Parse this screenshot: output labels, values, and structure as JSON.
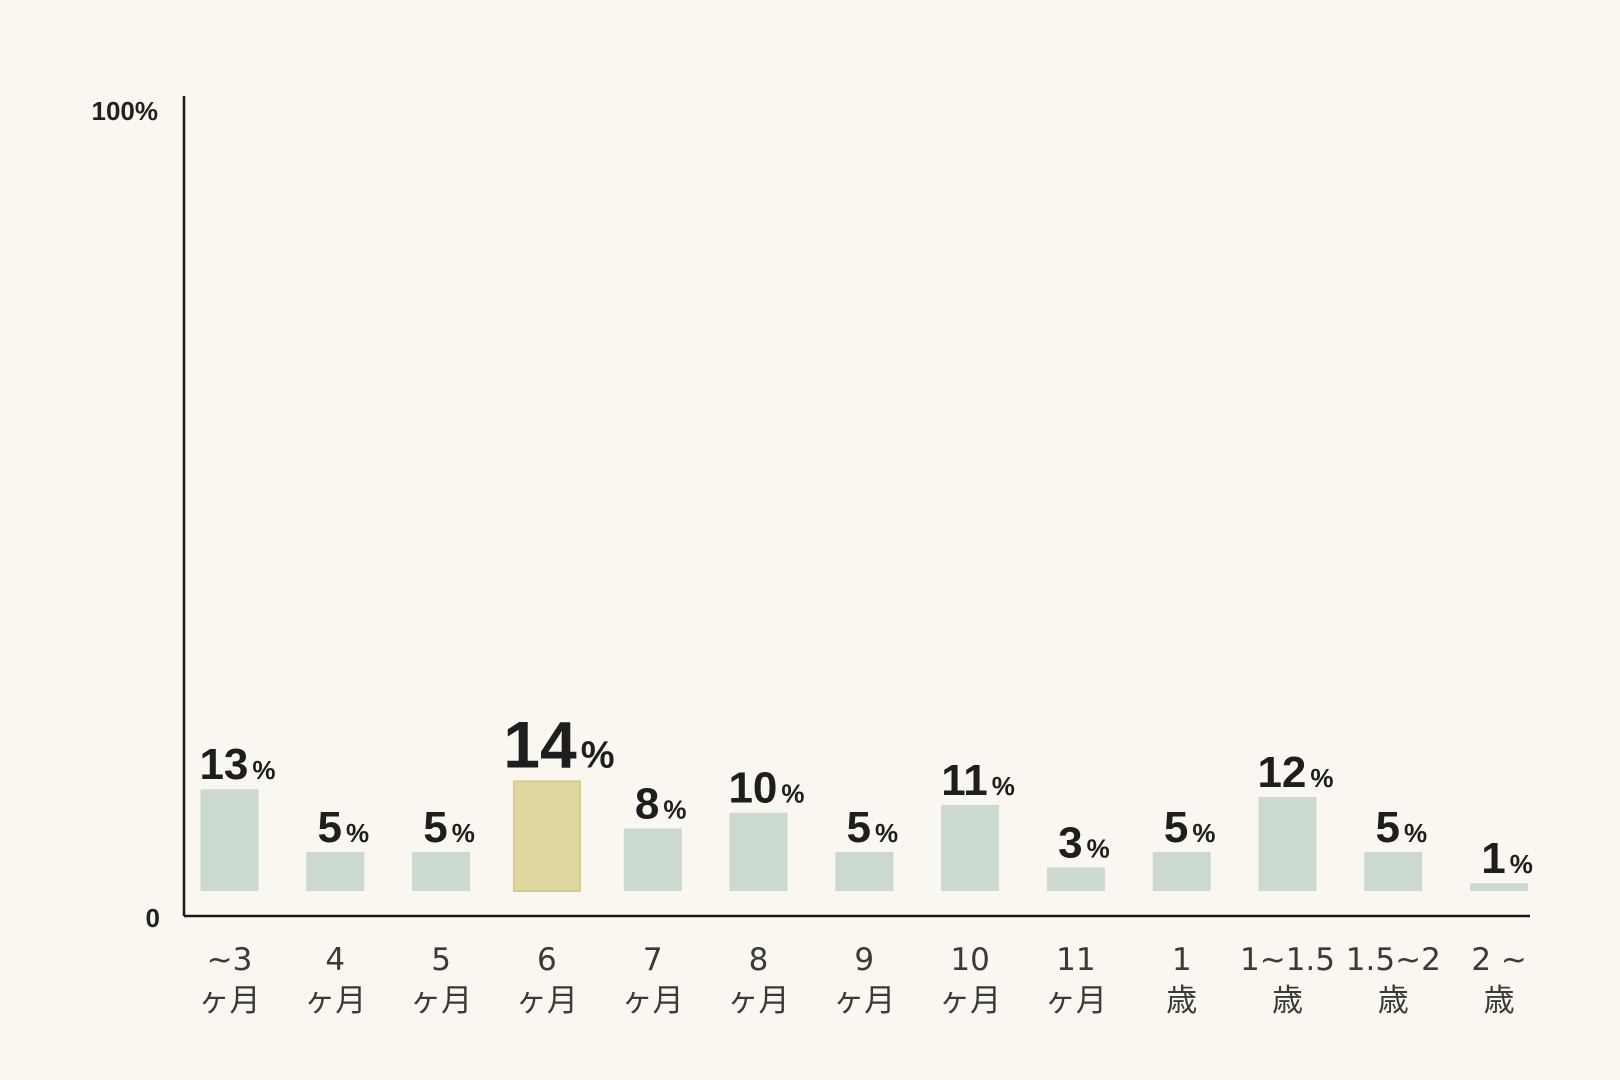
{
  "chart_data": {
    "type": "bar",
    "categories": [
      [
        "~3",
        "ヶ月"
      ],
      [
        "4",
        "ヶ月"
      ],
      [
        "5",
        "ヶ月"
      ],
      [
        "6",
        "ヶ月"
      ],
      [
        "7",
        "ヶ月"
      ],
      [
        "8",
        "ヶ月"
      ],
      [
        "9",
        "ヶ月"
      ],
      [
        "10",
        "ヶ月"
      ],
      [
        "11",
        "ヶ月"
      ],
      [
        "1",
        "歳"
      ],
      [
        "1~1.5",
        "歳"
      ],
      [
        "1.5~2",
        "歳"
      ],
      [
        "2 ~",
        "歳"
      ]
    ],
    "values": [
      13,
      5,
      5,
      14,
      8,
      10,
      5,
      11,
      3,
      5,
      12,
      5,
      1
    ],
    "value_labels": [
      "13",
      "5",
      "5",
      "14",
      "8",
      "10",
      "5",
      "11",
      "3",
      "5",
      "12",
      "5",
      "1"
    ],
    "value_suffix": "%",
    "highlight_index": 3,
    "ylim": [
      0,
      100
    ],
    "y_ticks": [
      "0",
      "100%"
    ],
    "grid": false,
    "legend": "none",
    "colors": {
      "bar": "#cbd9d0",
      "highlight": "#e0d79f",
      "highlight_edge": "#d4ca8c",
      "axis": "#1a1a1a",
      "background": "#faf7f1"
    }
  }
}
